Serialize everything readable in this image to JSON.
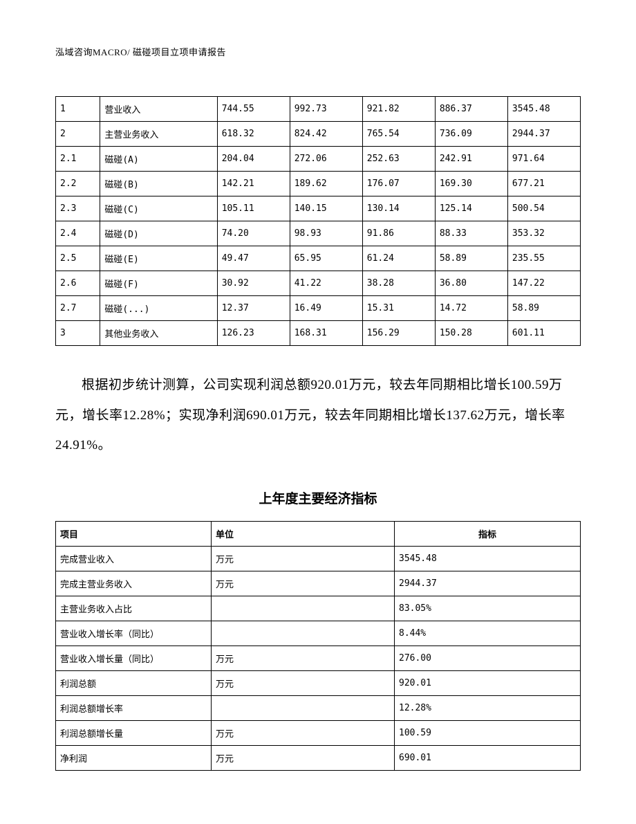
{
  "header": "泓域咨询MACRO/   磁碰项目立项申请报告",
  "table1": {
    "rows": [
      [
        "1",
        "营业收入",
        "744.55",
        "992.73",
        "921.82",
        "886.37",
        "3545.48"
      ],
      [
        "2",
        "主营业务收入",
        "618.32",
        "824.42",
        "765.54",
        "736.09",
        "2944.37"
      ],
      [
        "2.1",
        "磁碰(A)",
        "204.04",
        "272.06",
        "252.63",
        "242.91",
        "971.64"
      ],
      [
        "2.2",
        "磁碰(B)",
        "142.21",
        "189.62",
        "176.07",
        "169.30",
        "677.21"
      ],
      [
        "2.3",
        "磁碰(C)",
        "105.11",
        "140.15",
        "130.14",
        "125.14",
        "500.54"
      ],
      [
        "2.4",
        "磁碰(D)",
        "74.20",
        "98.93",
        "91.86",
        "88.33",
        "353.32"
      ],
      [
        "2.5",
        "磁碰(E)",
        "49.47",
        "65.95",
        "61.24",
        "58.89",
        "235.55"
      ],
      [
        "2.6",
        "磁碰(F)",
        "30.92",
        "41.22",
        "38.28",
        "36.80",
        "147.22"
      ],
      [
        "2.7",
        "磁碰(...)",
        "12.37",
        "16.49",
        "15.31",
        "14.72",
        "58.89"
      ],
      [
        "3",
        "其他业务收入",
        "126.23",
        "168.31",
        "156.29",
        "150.28",
        "601.11"
      ]
    ]
  },
  "paragraph": "根据初步统计测算，公司实现利润总额920.01万元，较去年同期相比增长100.59万元，增长率12.28%；实现净利润690.01万元，较去年同期相比增长137.62万元，增长率24.91%。",
  "title2": "上年度主要经济指标",
  "table2": {
    "headers": [
      "项目",
      "单位",
      "指标"
    ],
    "rows": [
      [
        "完成营业收入",
        "万元",
        "3545.48"
      ],
      [
        "完成主营业务收入",
        "万元",
        "2944.37"
      ],
      [
        "主营业务收入占比",
        "",
        "83.05%"
      ],
      [
        "营业收入增长率（同比）",
        "",
        "8.44%"
      ],
      [
        "营业收入增长量（同比）",
        "万元",
        "276.00"
      ],
      [
        "利润总额",
        "万元",
        "920.01"
      ],
      [
        "利润总额增长率",
        "",
        "12.28%"
      ],
      [
        "利润总额增长量",
        "万元",
        "100.59"
      ],
      [
        "净利润",
        "万元",
        "690.01"
      ]
    ]
  }
}
